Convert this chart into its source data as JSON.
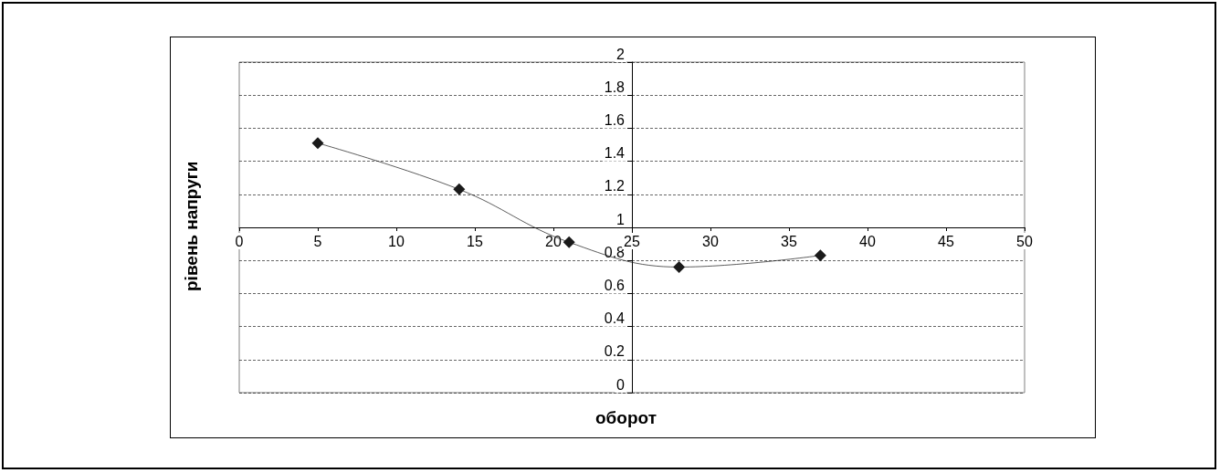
{
  "chart_data": {
    "type": "line",
    "xlabel": "оборот",
    "ylabel": "рівень напруги",
    "x": [
      5,
      14,
      21,
      28,
      37
    ],
    "series": [
      {
        "color": "#1a1a1a",
        "values": [
          1.51,
          1.23,
          0.91,
          0.76,
          0.83
        ]
      }
    ],
    "xlim": [
      0,
      50
    ],
    "xticks": [
      0,
      5,
      10,
      15,
      20,
      25,
      30,
      35,
      40,
      45,
      50
    ],
    "ylim": [
      0,
      2
    ],
    "yticks": [
      0,
      0.2,
      0.4,
      0.6,
      0.8,
      1,
      1.2,
      1.4,
      1.6,
      1.8,
      2
    ],
    "grid": "y",
    "marker": "diamond",
    "line_style": "solid"
  }
}
